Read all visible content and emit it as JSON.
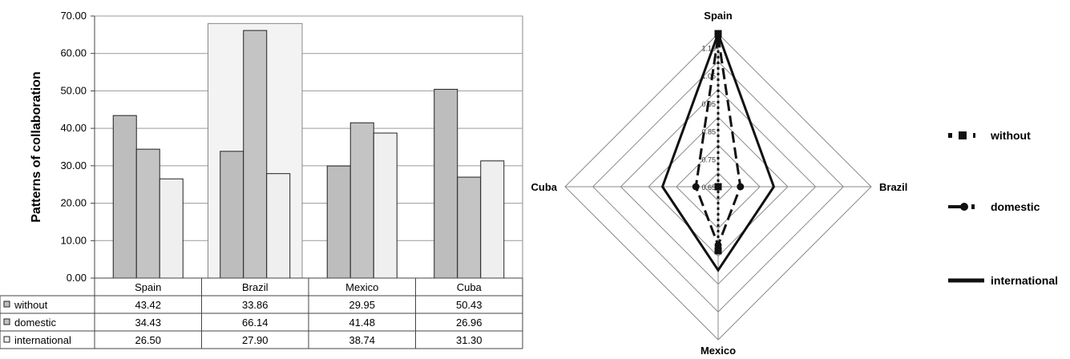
{
  "chart_data": [
    {
      "type": "bar",
      "categories": [
        "Spain",
        "Brazil",
        "Mexico",
        "Cuba"
      ],
      "series": [
        {
          "name": "without",
          "values": [
            43.42,
            33.86,
            29.95,
            50.43
          ],
          "color": "#bdbdbd"
        },
        {
          "name": "domestic",
          "values": [
            34.43,
            66.14,
            41.48,
            26.96
          ],
          "color": "#c4c4c4"
        },
        {
          "name": "international",
          "values": [
            26.5,
            27.9,
            38.74,
            31.3
          ],
          "color": "#efefef"
        }
      ],
      "ylabel": "Patterns of collaboration",
      "ylim": [
        0,
        70
      ],
      "yticks": [
        "0.00",
        "10.00",
        "20.00",
        "30.00",
        "40.00",
        "50.00",
        "60.00",
        "70.00"
      ],
      "table": {
        "rows": [
          {
            "label": "without",
            "cells": [
              "43.42",
              "33.86",
              "29.95",
              "50.43"
            ]
          },
          {
            "label": "domestic",
            "cells": [
              "34.43",
              "66.14",
              "41.48",
              "26.96"
            ]
          },
          {
            "label": "international",
            "cells": [
              "26.50",
              "27.90",
              "38.74",
              "31.30"
            ]
          }
        ]
      },
      "grid": true,
      "highlighted_category": "Brazil"
    },
    {
      "type": "radar",
      "axes": [
        "Spain",
        "Brazil",
        "Mexico",
        "Cuba"
      ],
      "rlim": [
        0.65,
        1.2
      ],
      "ticks": [
        "0.65",
        "0.75",
        "0.85",
        "0.95",
        "1.05",
        "1.15"
      ],
      "series": [
        {
          "name": "without",
          "values": [
            1.2,
            0.65,
            0.88,
            0.65
          ],
          "style": "dotted-square"
        },
        {
          "name": "domestic",
          "values": [
            1.19,
            0.73,
            0.86,
            0.73
          ],
          "style": "dashed-circle"
        },
        {
          "name": "international",
          "values": [
            1.2,
            0.85,
            0.95,
            0.85
          ],
          "style": "solid"
        }
      ],
      "legend_position": "right"
    }
  ]
}
